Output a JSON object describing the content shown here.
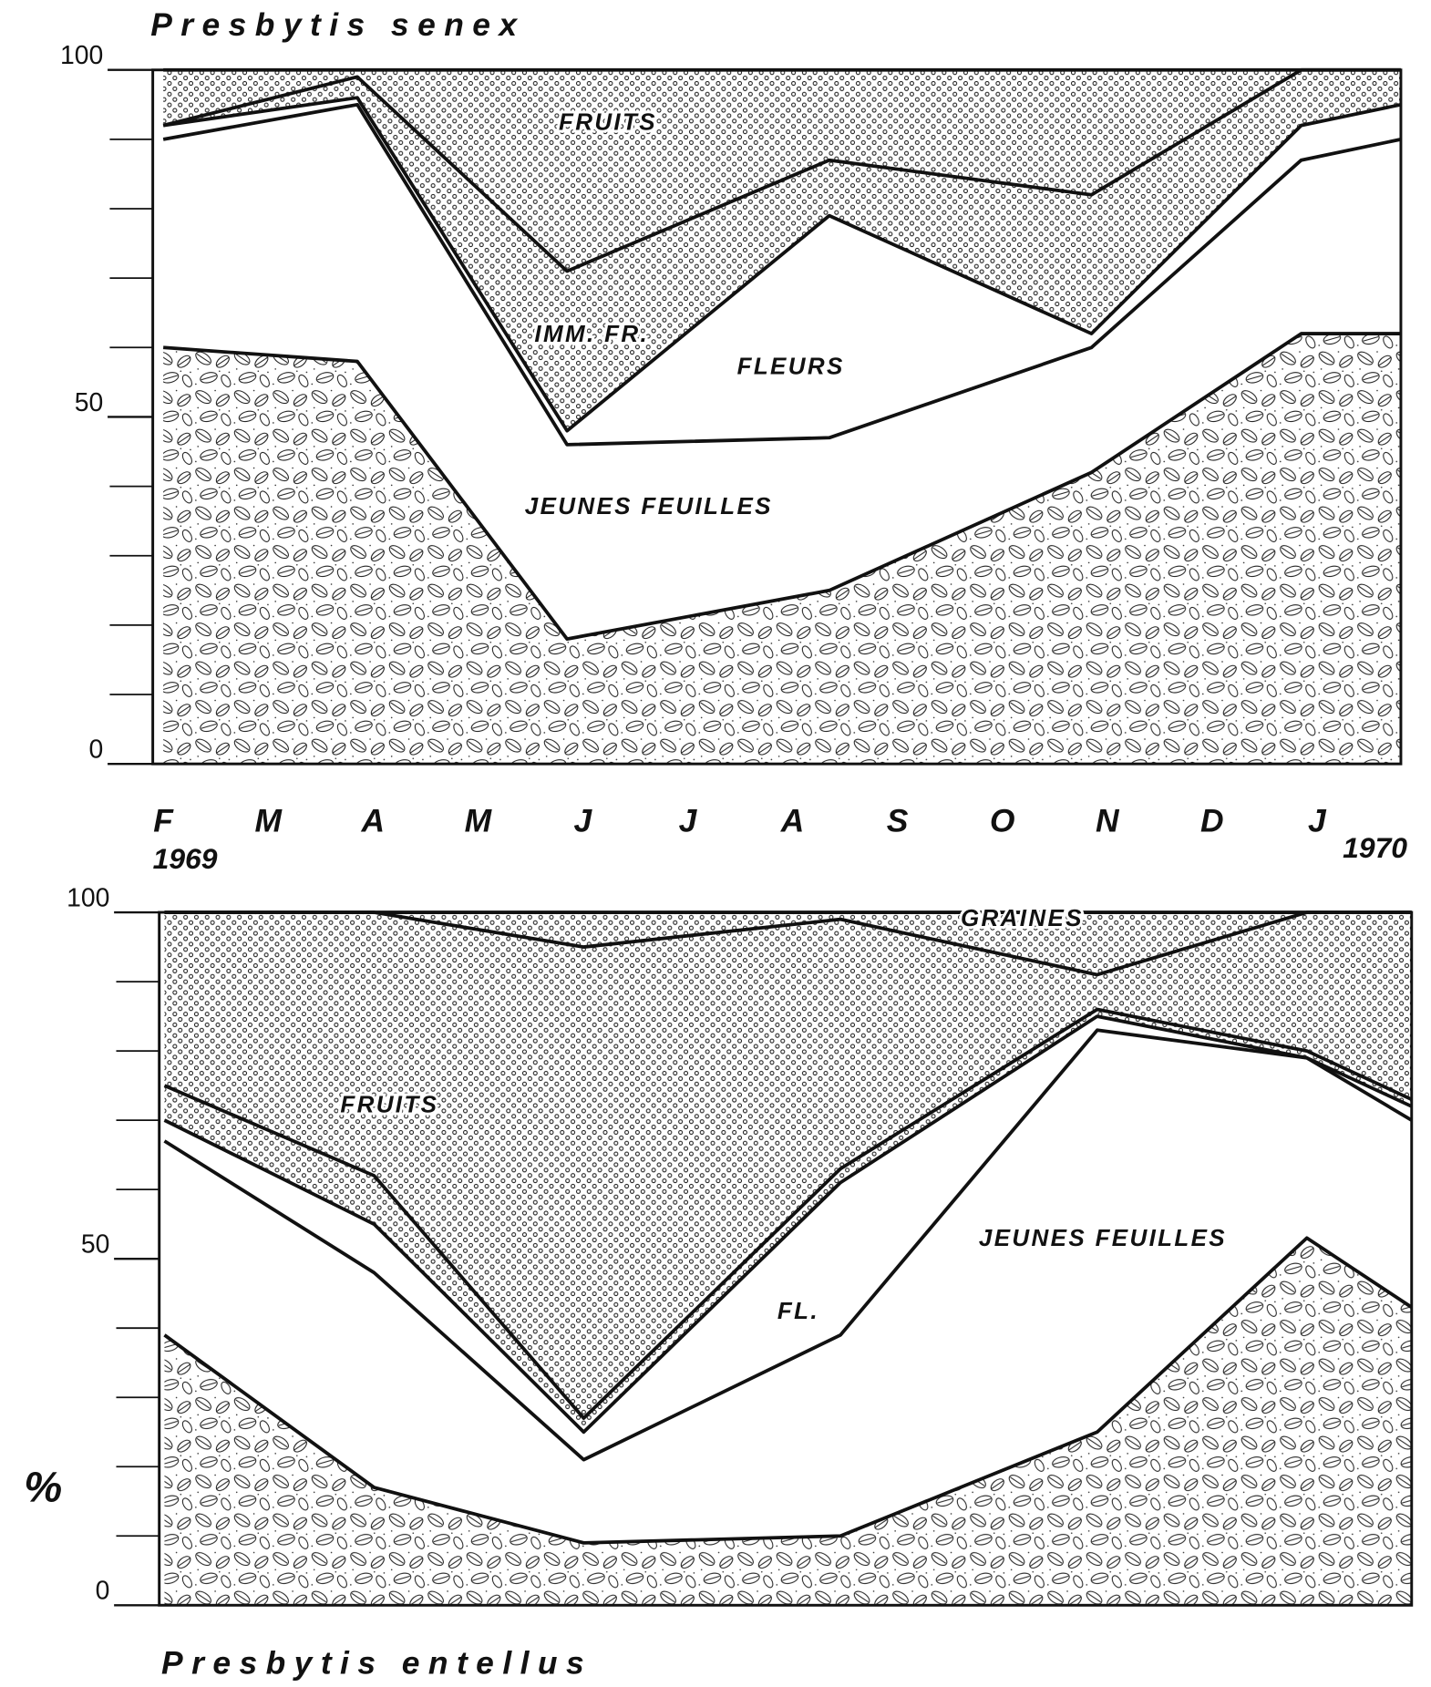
{
  "chart_data": [
    {
      "type": "area",
      "stacked": true,
      "title": "Presbytis senex",
      "x": [
        0,
        1.85,
        3.85,
        6.35,
        8.85,
        10.85,
        11.8
      ],
      "xlim": [
        -0.1,
        11.8
      ],
      "xticks": [
        {
          "value": 0,
          "label": "F"
        },
        {
          "value": 1,
          "label": "M"
        },
        {
          "value": 2,
          "label": "A"
        },
        {
          "value": 3,
          "label": "M"
        },
        {
          "value": 4,
          "label": "J"
        },
        {
          "value": 5,
          "label": "J"
        },
        {
          "value": 6,
          "label": "A"
        },
        {
          "value": 7,
          "label": "S"
        },
        {
          "value": 8,
          "label": "O"
        },
        {
          "value": 9,
          "label": "N"
        },
        {
          "value": 10,
          "label": "D"
        },
        {
          "value": 11,
          "label": "J"
        }
      ],
      "annotations": [
        "1969",
        "1970"
      ],
      "ylim": [
        0,
        100
      ],
      "yticks": [
        0,
        50,
        100
      ],
      "yminorticks": [
        10,
        20,
        30,
        40,
        60,
        70,
        80,
        90
      ],
      "series": [
        {
          "pattern": "leaves",
          "values": [
            60,
            58,
            18,
            25,
            42,
            62,
            62
          ]
        },
        {
          "name": "JEUNES FEUILLES",
          "pattern": "blank",
          "values": [
            30,
            37,
            28,
            22,
            18,
            25,
            28
          ]
        },
        {
          "name": "FLEURS",
          "pattern": "blank",
          "values": [
            2,
            1,
            2,
            32,
            2,
            5,
            5
          ]
        },
        {
          "name": "IMM. FR.",
          "pattern": "dots",
          "values": [
            0,
            3,
            23,
            8,
            20,
            8,
            5
          ]
        },
        {
          "name": "FRUITS",
          "pattern": "dots",
          "values": [
            8,
            1,
            29,
            13,
            18,
            0,
            0
          ]
        }
      ]
    },
    {
      "type": "area",
      "stacked": true,
      "title": "Presbytis entellus",
      "ylabel": "%",
      "x": [
        0,
        2,
        4,
        6.45,
        8.9,
        10.9,
        11.9
      ],
      "xlim": [
        -0.05,
        11.9
      ],
      "ylim": [
        0,
        100
      ],
      "yticks": [
        0,
        50,
        100
      ],
      "yminorticks": [
        10,
        20,
        30,
        40,
        60,
        70,
        80,
        90
      ],
      "series": [
        {
          "pattern": "leaves",
          "values": [
            39,
            17,
            9,
            10,
            25,
            53,
            43
          ]
        },
        {
          "name": "JEUNES FEUILLES",
          "pattern": "blank",
          "values": [
            28,
            31,
            12,
            29,
            58,
            26,
            27
          ]
        },
        {
          "name": "FL.",
          "pattern": "blank",
          "values": [
            3,
            7,
            4,
            22,
            2,
            0,
            2
          ]
        },
        {
          "pattern": "dots",
          "values": [
            5,
            7,
            2,
            2,
            1,
            1,
            1
          ]
        },
        {
          "name": "FRUITS",
          "pattern": "dots",
          "values": [
            25,
            38,
            68,
            36,
            5,
            20,
            27
          ]
        },
        {
          "name": "GRAINES",
          "pattern": "dots",
          "values": [
            0,
            0,
            5,
            1,
            9,
            0,
            0
          ]
        }
      ]
    }
  ]
}
